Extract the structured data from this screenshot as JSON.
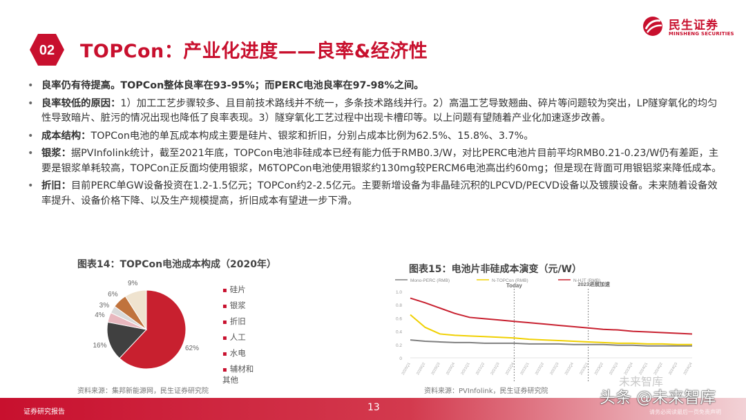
{
  "header": {
    "badge": "02",
    "title": "TOPCon：产业化进度——良率&经济性",
    "logo_cn": "民生证券",
    "logo_en": "MINSHENG SECURITIES"
  },
  "bullets": [
    {
      "lead": "良率仍有待提高。",
      "text": "TOPCon整体良率在93-95%；而PERC电池良率在97-98%之间。",
      "bold_all": true
    },
    {
      "lead": "良率较低的原因：",
      "text": "1）加工工艺步骤较多、且目前技术路线并不统一，多条技术路线并行。2）高温工艺导致翘曲、碎片等问题较为突出，LP隧穿氧化的均匀性导致暗片、脏污的情况出现也降低了良率表现。3）隧穿氧化工艺过程中出现卡槽印等。以上问题有望随着产业化加速逐步改善。"
    },
    {
      "lead": "成本结构：",
      "text": "TOPCon电池的单瓦成本构成主要是硅片、银浆和折旧，分别占成本比例为62.5%、15.8%、3.7%。"
    },
    {
      "lead": "银浆：",
      "text": "据PVInfolink统计，截至2021年底，TOPCon电池非硅成本已经有能力低于RMB0.3/W，对比PERC电池片目前平均RMB0.21-0.23/W仍有差距，主要是银浆单耗较高，TOPCon正反面均使用银浆，M6TOPCon电池使用银浆约130mg较PERCM6电池高出约60mg；但是现在背面可用银铝浆来降低成本。"
    },
    {
      "lead": "折旧：",
      "text": "目前PERC单GW设备投资在1.2-1.5亿元；TOPCon约2-2.5亿元。主要新增设备为非晶硅沉积的LPCVD/PECVD设备以及镀膜设备。未来随着设备效率提升、设备价格下降、以及生产规模提高，折旧成本有望进一步下滑。"
    }
  ],
  "bullet_symbol": "•",
  "chart14": {
    "title": "图表14：TOPCon电池成本构成（2020年）",
    "source": "资料来源：集邦新能源网，民生证券研究院"
  },
  "chart15": {
    "title": "图表15：电池片非硅成本演变（元/W）",
    "source": "资料来源：PVInfolink，民生证券研究院"
  },
  "chart_data": [
    {
      "type": "pie",
      "title": "图表14：TOPCon电池成本构成（2020年）",
      "categories": [
        "硅片",
        "银浆",
        "折旧",
        "人工",
        "水电",
        "辅材和其他"
      ],
      "values": [
        62,
        16,
        4,
        3,
        6,
        9
      ],
      "labels": [
        "62%",
        "16%",
        "4%",
        "3%",
        "6%",
        "9%"
      ],
      "colors": [
        "#c8202f",
        "#404040",
        "#e8b7be",
        "#d9d9d9",
        "#c0733d",
        "#efe3cf"
      ],
      "legend_position": "right"
    },
    {
      "type": "line",
      "title": "图表15：电池片非硅成本演变（元/W）",
      "x": [
        "2020Q1",
        "2020Q2",
        "2020Q3",
        "2020Q4",
        "2021Q1",
        "2021Q2",
        "2021Q3",
        "2021Q4",
        "2022Q1",
        "2022Q2",
        "2022Q3",
        "2022Q4",
        "2023Q1",
        "2023Q2",
        "2023Q3",
        "2023Q4",
        "2024Q1",
        "2024Q2",
        "2024Q3",
        "2024Q4"
      ],
      "series": [
        {
          "name": "Mono-PERC (RMB)",
          "color": "#7f7f7f",
          "values": [
            0.27,
            0.25,
            0.24,
            0.23,
            0.23,
            0.22,
            0.22,
            0.22,
            0.21,
            0.21,
            0.21,
            0.2,
            0.2,
            0.2,
            0.19,
            0.19,
            0.18,
            0.18,
            0.18,
            0.18
          ]
        },
        {
          "name": "N-TOPCon (RMB)",
          "color": "#f0d000",
          "values": [
            0.65,
            0.46,
            0.36,
            0.34,
            0.33,
            0.32,
            0.31,
            0.3,
            0.28,
            0.27,
            0.26,
            0.25,
            0.24,
            0.23,
            0.22,
            0.22,
            0.21,
            0.21,
            0.2,
            0.2
          ]
        },
        {
          "name": "N-HJT (RMB)",
          "color": "#c8202f",
          "values": [
            0.9,
            0.83,
            0.75,
            0.67,
            0.61,
            0.59,
            0.57,
            0.55,
            0.53,
            0.51,
            0.49,
            0.47,
            0.45,
            0.43,
            0.42,
            0.4,
            0.39,
            0.38,
            0.37,
            0.36
          ]
        }
      ],
      "ylim": [
        0,
        1.0
      ],
      "yticks": [
        "0",
        "0.2",
        "0.4",
        "0.6",
        "0.8",
        "1.0"
      ],
      "annotations": [
        {
          "text": "Today",
          "x": "2021Q4"
        },
        {
          "text": "2023进展加速",
          "x": "2023Q1"
        }
      ],
      "legend_position": "top"
    }
  ],
  "watermark": {
    "text": "头条 @未来智库",
    "faint": "未来智库"
  },
  "footer": {
    "left": "证券研究报告",
    "page": "13",
    "right": "请务必阅读最后一页免责声明"
  }
}
